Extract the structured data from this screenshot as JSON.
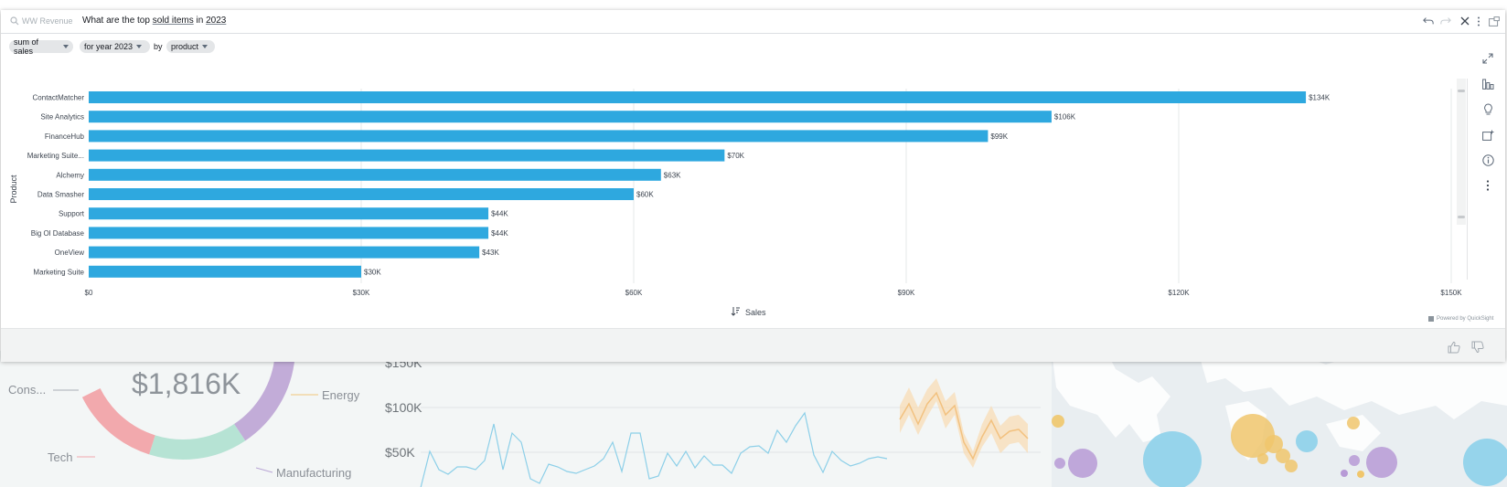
{
  "search": {
    "topic": "WW Revenue",
    "question_parts": [
      "What are the top ",
      "sold items",
      " in ",
      "2023"
    ]
  },
  "filters": {
    "measure": "sum of sales",
    "date": "for year 2023",
    "by_word": "by",
    "dimension": "product"
  },
  "chart_data": {
    "type": "bar",
    "orientation": "horizontal",
    "categories": [
      "ContactMatcher",
      "Site Analytics",
      "FinanceHub",
      "Marketing Suite...",
      "Alchemy",
      "Data Smasher",
      "Support",
      "Big Ol Database",
      "OneView",
      "Marketing Suite"
    ],
    "values": [
      134,
      106,
      99,
      70,
      63,
      60,
      44,
      44,
      43,
      30
    ],
    "value_labels": [
      "$134K",
      "$106K",
      "$99K",
      "$70K",
      "$63K",
      "$60K",
      "$44K",
      "$44K",
      "$43K",
      "$30K"
    ],
    "x_ticks": [
      "$0",
      "$30K",
      "$60K",
      "$90K",
      "$120K",
      "$150K"
    ],
    "xlim": [
      0,
      150
    ],
    "xlabel": "Sales",
    "ylabel": "Product",
    "grid": true,
    "bar_color": "#2ea8df"
  },
  "footer": {
    "powered_by": "Powered by QuickSight"
  },
  "background": {
    "donut": {
      "center_value": "$1,816K",
      "labels": [
        "Cons...",
        "Energy",
        "Tech",
        "Manufacturing"
      ],
      "colors": [
        "#9aa9d2",
        "#f5d48d",
        "#f2a9ad",
        "#b6e3d4",
        "#c2acd8"
      ]
    },
    "line_chart": {
      "y_ticks": [
        "$150K",
        "$100K",
        "$50K"
      ]
    }
  },
  "colors": {
    "accent": "#2ea8df",
    "icon": "#5f6b7a"
  }
}
